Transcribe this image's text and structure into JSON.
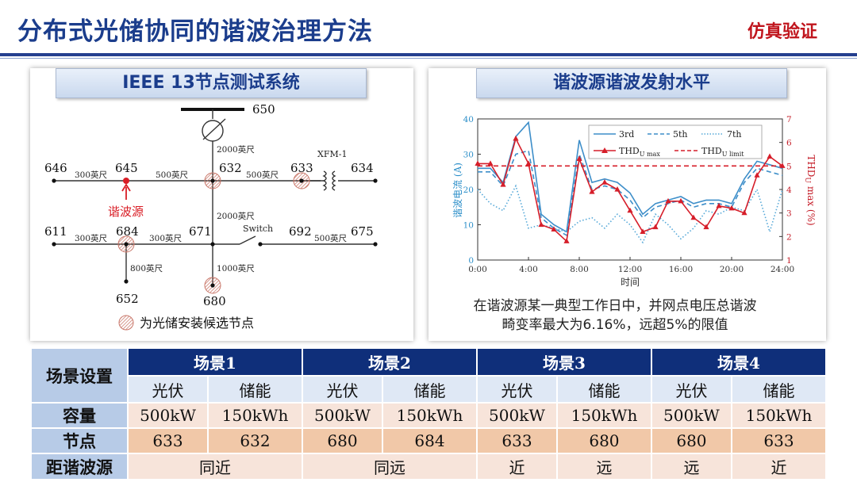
{
  "header": {
    "title": "分布式光储协同的谐波治理方法",
    "subtitle": "仿真验证"
  },
  "left_panel": {
    "heading": "IEEE 13节点测试系统",
    "nodes": [
      "650",
      "646",
      "645",
      "632",
      "633",
      "634",
      "611",
      "684",
      "671",
      "692",
      "675",
      "652",
      "680"
    ],
    "line_labels": {
      "l650_632": "2000英尺",
      "l646_645": "300英尺",
      "l645_632": "500英尺",
      "l632_633": "500英尺",
      "l632_671": "2000英尺",
      "l611_684": "300英尺",
      "l684_671": "300英尺",
      "l692_675": "500英尺",
      "l684_652": "800英尺",
      "l671_680": "1000英尺"
    },
    "xfm_label": "XFM-1",
    "switch_label": "Switch",
    "source_label": "谐波源",
    "legend_text": "为光储安装候选节点",
    "colors": {
      "source": "#d91e26",
      "candidate": "#c9776a"
    }
  },
  "right_panel": {
    "heading": "谐波源谐波发射水平",
    "caption_line1": "在谐波源某一典型工作日中，并网点电压总谐波",
    "caption_line2": "畸变率最大为6.16%，远超5%的限值"
  },
  "chart_data": {
    "type": "line",
    "x": [
      0,
      1,
      2,
      3,
      4,
      5,
      6,
      7,
      8,
      9,
      10,
      11,
      12,
      13,
      14,
      15,
      16,
      17,
      18,
      19,
      20,
      21,
      22,
      23,
      24
    ],
    "xticks": [
      "0:00",
      "4:00",
      "8:00",
      "12:00",
      "16:00",
      "20:00",
      "24:00"
    ],
    "xlabel": "时间",
    "ylabel_left": "谐波电流 (A)",
    "ylabel_right": "THDU max (%)",
    "ylim_left": [
      0,
      40
    ],
    "yticks_left": [
      0,
      10,
      20,
      30,
      40
    ],
    "ylim_right": [
      1,
      7
    ],
    "yticks_right": [
      1,
      2,
      3,
      4,
      5,
      6,
      7
    ],
    "series": [
      {
        "name": "3rd",
        "axis": "left",
        "style": "solid",
        "color": "#3d8ec9",
        "values": [
          26,
          26,
          22,
          35,
          39,
          13,
          10,
          8,
          34,
          22,
          23,
          22,
          19,
          13,
          16,
          17,
          18,
          16,
          17,
          17,
          16,
          23,
          28,
          27,
          26
        ]
      },
      {
        "name": "5th",
        "axis": "left",
        "style": "dashed",
        "color": "#3d8ec9",
        "values": [
          25,
          25,
          21,
          30,
          31,
          12,
          9,
          7,
          30,
          20,
          21,
          20,
          17,
          12,
          15,
          16,
          17,
          15,
          16,
          16,
          15,
          22,
          26,
          25,
          24
        ]
      },
      {
        "name": "7th",
        "axis": "left",
        "style": "dotted",
        "color": "#55a8d8",
        "values": [
          20,
          16,
          14,
          21,
          9,
          10,
          9,
          8,
          11,
          12,
          9,
          13,
          10,
          5,
          13,
          10,
          6,
          9,
          14,
          13,
          15,
          14,
          20,
          8,
          20
        ]
      },
      {
        "name": "THD",
        "name_sub": "U max",
        "axis": "right",
        "style": "solid-marker",
        "color": "#d61e2a",
        "values": [
          5.1,
          5.1,
          4.2,
          6.16,
          5.1,
          2.5,
          2.3,
          1.8,
          5.3,
          3.9,
          4.3,
          4.0,
          3.1,
          2.2,
          2.4,
          3.5,
          3.5,
          2.8,
          2.4,
          3.3,
          3.2,
          3.0,
          4.6,
          5.4,
          5.0
        ]
      },
      {
        "name": "THD",
        "name_sub": "U limit",
        "axis": "right",
        "style": "dashed",
        "color": "#d61e2a",
        "values": [
          5,
          5,
          5,
          5,
          5,
          5,
          5,
          5,
          5,
          5,
          5,
          5,
          5,
          5,
          5,
          5,
          5,
          5,
          5,
          5,
          5,
          5,
          5,
          5,
          5
        ]
      }
    ]
  },
  "table": {
    "corner": "场景设置",
    "scenarios": [
      "场景1",
      "场景2",
      "场景3",
      "场景4"
    ],
    "sub_headers": [
      "光伏",
      "储能",
      "光伏",
      "储能",
      "光伏",
      "储能",
      "光伏",
      "储能"
    ],
    "rows": [
      {
        "label": "容量",
        "cells": [
          "500kW",
          "150kWh",
          "500kW",
          "150kWh",
          "500kW",
          "150kWh",
          "500kW",
          "150kWh"
        ]
      },
      {
        "label": "节点",
        "cells": [
          "633",
          "632",
          "680",
          "684",
          "633",
          "680",
          "680",
          "633"
        ]
      },
      {
        "label": "距谐波源",
        "cells": [
          "同近",
          "同远",
          "近",
          "远",
          "远",
          "近"
        ]
      }
    ]
  }
}
